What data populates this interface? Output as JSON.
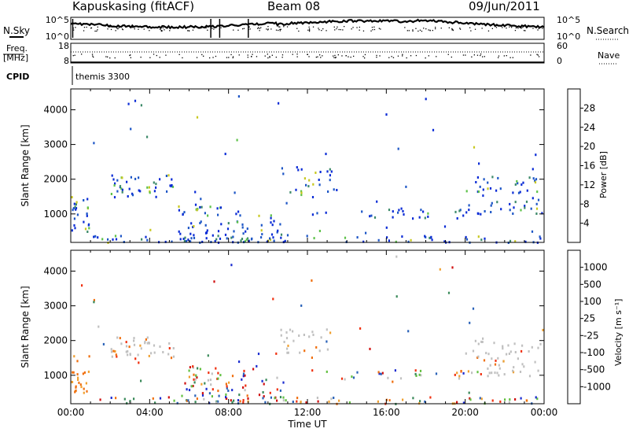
{
  "header": {
    "station": "Kapuskasing (fitACF)",
    "beam": "Beam 08",
    "date": "09/Jun/2011"
  },
  "status_panels": {
    "noise_sky_label": "N.Sky",
    "noise_sky_ticks": [
      "10^5",
      "10^0"
    ],
    "noise_search_label": "N.Search",
    "noise_search_ticks": [
      "10^5",
      "10^0"
    ],
    "freq_label_top": "Freq.",
    "freq_label_bottom": "[MHz]",
    "freq_ticks": [
      "18",
      "8"
    ],
    "nave_label": "Nave",
    "nave_ticks": [
      "60",
      "0"
    ],
    "cpid_label": "CPID",
    "cpid_value": "themis 3300"
  },
  "chart_data": [
    {
      "type": "heatmap",
      "panel": "power",
      "ylabel": "Slant Range [km]",
      "yticks": [
        1000,
        2000,
        3000,
        4000
      ],
      "ylim": [
        180,
        4600
      ],
      "xlim_hours": [
        0,
        24
      ],
      "xticks": [
        "00:00",
        "04:00",
        "08:00",
        "12:00",
        "16:00",
        "20:00",
        "00:00"
      ],
      "colorbar": {
        "title": "Power [dB]",
        "ticks": [
          "4",
          "8",
          "12",
          "16",
          "20",
          "24",
          "28"
        ],
        "colors": [
          "#0a2bd6",
          "#1d56c6",
          "#3d8a6a",
          "#5ec24a",
          "#c8c820",
          "#f0a020",
          "#f06010",
          "#e02010"
        ]
      }
    },
    {
      "type": "heatmap",
      "panel": "velocity",
      "ylabel": "Slant Range [km]",
      "yticks": [
        1000,
        2000,
        3000,
        4000
      ],
      "ylim": [
        180,
        4600
      ],
      "xlim_hours": [
        0,
        24
      ],
      "xticks": [
        "00:00",
        "04:00",
        "08:00",
        "12:00",
        "16:00",
        "20:00",
        "00:00"
      ],
      "xlabel": "Time UT",
      "colorbar": {
        "title": "Velocity [m s⁻¹]",
        "ticks": [
          "1000",
          "500",
          "100",
          "25",
          "-25",
          "-100",
          "-500",
          "-1000"
        ],
        "colors": [
          "#1a2bd0",
          "#2a62b8",
          "#3a8a5a",
          "#62c040",
          "#c0c0c0",
          "#f0a030",
          "#f07010",
          "#f03010",
          "#d01010"
        ]
      },
      "ground_scatter_color": "#c0c0c0"
    }
  ],
  "colors": {
    "frame": "#000000",
    "background": "#ffffff"
  }
}
